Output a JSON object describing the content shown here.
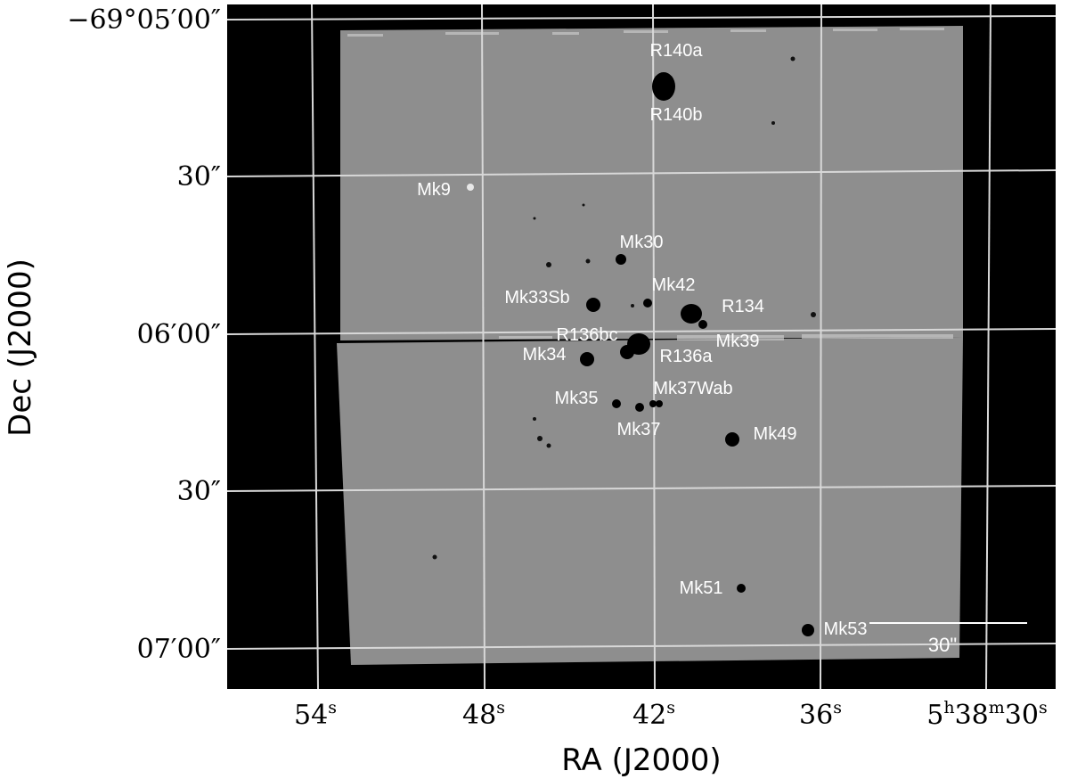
{
  "axes": {
    "x_title": "RA (J2000)",
    "y_title": "Dec (J2000)",
    "ra_ticks": [
      {
        "main": "54",
        "sup": "s"
      },
      {
        "main": "48",
        "sup": "s"
      },
      {
        "main": "42",
        "sup": "s"
      },
      {
        "main": "36",
        "sup": "s"
      },
      {
        "main": "5",
        "sup": "h",
        "main2": "38",
        "sup2": "m",
        "main3": "30",
        "sup3": "s"
      }
    ],
    "dec_ticks": [
      "−69°05′00″",
      "30″",
      "06′00″",
      "30″",
      "07′00″"
    ]
  },
  "colors": {
    "background": "#000000",
    "image_field": "#8e8e8e",
    "grid": "#d8d8d8",
    "labels": "#ffffff"
  },
  "stars": [
    {
      "name": "R140a"
    },
    {
      "name": "R140b"
    },
    {
      "name": "Mk9"
    },
    {
      "name": "Mk30"
    },
    {
      "name": "Mk42"
    },
    {
      "name": "Mk33Sb"
    },
    {
      "name": "R134"
    },
    {
      "name": "R136bc"
    },
    {
      "name": "Mk39"
    },
    {
      "name": "Mk34"
    },
    {
      "name": "R136a"
    },
    {
      "name": "Mk35"
    },
    {
      "name": "Mk37Wab"
    },
    {
      "name": "Mk37"
    },
    {
      "name": "Mk49"
    },
    {
      "name": "Mk51"
    },
    {
      "name": "Mk53"
    }
  ],
  "scale_bar": {
    "label": "30\""
  }
}
